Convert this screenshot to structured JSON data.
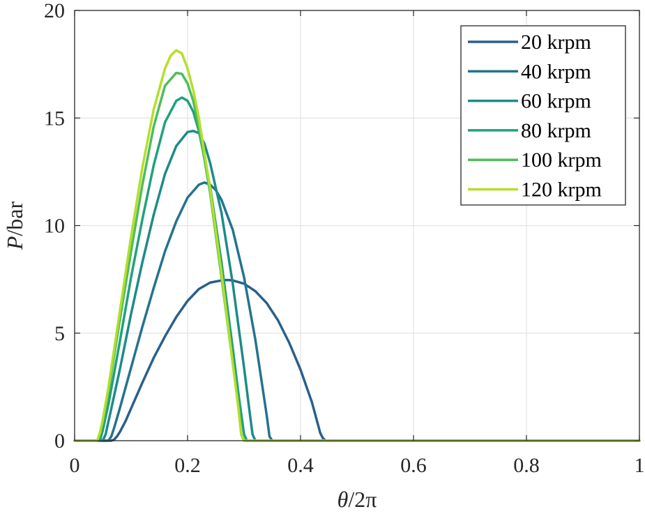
{
  "chart_data": {
    "type": "line",
    "xlabel_symbol": "θ",
    "xlabel_rest": "/2π",
    "ylabel_symbol": "P",
    "ylabel_rest": "/bar",
    "xlim": [
      0,
      1
    ],
    "ylim": [
      0,
      20
    ],
    "xticks": [
      0,
      0.2,
      0.4,
      0.6,
      0.8,
      1
    ],
    "xtick_labels": [
      "0",
      "0.2",
      "0.4",
      "0.6",
      "0.8",
      "1"
    ],
    "yticks": [
      0,
      5,
      10,
      15,
      20
    ],
    "ytick_labels": [
      "0",
      "5",
      "10",
      "15",
      "20"
    ],
    "grid": true,
    "legend_position": "top-right",
    "series": [
      {
        "name": "20 krpm",
        "color": "#2A5F8C",
        "x": [
          0,
          0.065,
          0.07,
          0.075,
          0.08,
          0.09,
          0.1,
          0.12,
          0.14,
          0.16,
          0.18,
          0.2,
          0.22,
          0.24,
          0.26,
          0.27,
          0.28,
          0.3,
          0.32,
          0.34,
          0.36,
          0.38,
          0.4,
          0.42,
          0.435,
          0.44,
          0.445,
          1
        ],
        "y": [
          0,
          0,
          0.05,
          0.2,
          0.4,
          0.9,
          1.5,
          2.7,
          3.85,
          4.85,
          5.75,
          6.5,
          7.05,
          7.35,
          7.45,
          7.47,
          7.45,
          7.3,
          6.95,
          6.4,
          5.6,
          4.55,
          3.3,
          1.8,
          0.35,
          0.1,
          0,
          0
        ]
      },
      {
        "name": "40 krpm",
        "color": "#24738E",
        "x": [
          0,
          0.06,
          0.065,
          0.07,
          0.08,
          0.1,
          0.12,
          0.14,
          0.16,
          0.18,
          0.2,
          0.22,
          0.23,
          0.24,
          0.25,
          0.26,
          0.28,
          0.3,
          0.32,
          0.34,
          0.345,
          0.35,
          1
        ],
        "y": [
          0,
          0,
          0.2,
          0.6,
          1.5,
          3.4,
          5.3,
          7.1,
          8.8,
          10.2,
          11.3,
          11.9,
          12.0,
          11.9,
          11.65,
          11.2,
          9.8,
          7.6,
          4.7,
          1.2,
          0.2,
          0,
          0
        ]
      },
      {
        "name": "60 krpm",
        "color": "#1E8A8A",
        "x": [
          0,
          0.05,
          0.055,
          0.06,
          0.08,
          0.1,
          0.12,
          0.14,
          0.16,
          0.18,
          0.2,
          0.21,
          0.22,
          0.23,
          0.24,
          0.26,
          0.28,
          0.3,
          0.31,
          0.315,
          0.32,
          1
        ],
        "y": [
          0,
          0,
          0.3,
          0.9,
          3.3,
          5.9,
          8.3,
          10.5,
          12.4,
          13.7,
          14.35,
          14.4,
          14.3,
          13.8,
          12.9,
          10.6,
          7.3,
          3.4,
          1.3,
          0.3,
          0,
          0
        ]
      },
      {
        "name": "80 krpm",
        "color": "#21A17B",
        "x": [
          0,
          0.045,
          0.05,
          0.06,
          0.08,
          0.1,
          0.12,
          0.14,
          0.16,
          0.18,
          0.19,
          0.2,
          0.21,
          0.22,
          0.24,
          0.26,
          0.28,
          0.29,
          0.3,
          0.305,
          1
        ],
        "y": [
          0,
          0,
          0.5,
          1.7,
          4.6,
          7.6,
          10.3,
          12.8,
          14.8,
          15.8,
          15.95,
          15.8,
          15.3,
          14.4,
          11.8,
          8.3,
          4.3,
          2.2,
          0.3,
          0,
          0
        ]
      },
      {
        "name": "100 krpm",
        "color": "#4DBE5B",
        "x": [
          0,
          0.04,
          0.045,
          0.05,
          0.06,
          0.08,
          0.1,
          0.12,
          0.14,
          0.16,
          0.18,
          0.19,
          0.2,
          0.21,
          0.22,
          0.24,
          0.26,
          0.28,
          0.29,
          0.295,
          0.3,
          1
        ],
        "y": [
          0,
          0,
          0.3,
          0.9,
          2.3,
          5.6,
          8.8,
          11.9,
          14.6,
          16.5,
          17.1,
          17.05,
          16.6,
          15.8,
          14.6,
          11.5,
          7.6,
          3.6,
          1.6,
          0.3,
          0,
          0
        ]
      },
      {
        "name": "120 krpm",
        "color": "#B5DE2B",
        "x": [
          0,
          0.04,
          0.045,
          0.05,
          0.06,
          0.08,
          0.1,
          0.12,
          0.14,
          0.16,
          0.17,
          0.18,
          0.19,
          0.2,
          0.21,
          0.22,
          0.24,
          0.26,
          0.28,
          0.29,
          0.295,
          0.3,
          1
        ],
        "y": [
          0,
          0,
          0.4,
          1.0,
          2.5,
          6.0,
          9.5,
          12.7,
          15.4,
          17.3,
          17.9,
          18.15,
          18.0,
          17.3,
          16.3,
          15.0,
          11.7,
          7.8,
          3.6,
          1.5,
          0.3,
          0,
          0
        ]
      }
    ]
  }
}
